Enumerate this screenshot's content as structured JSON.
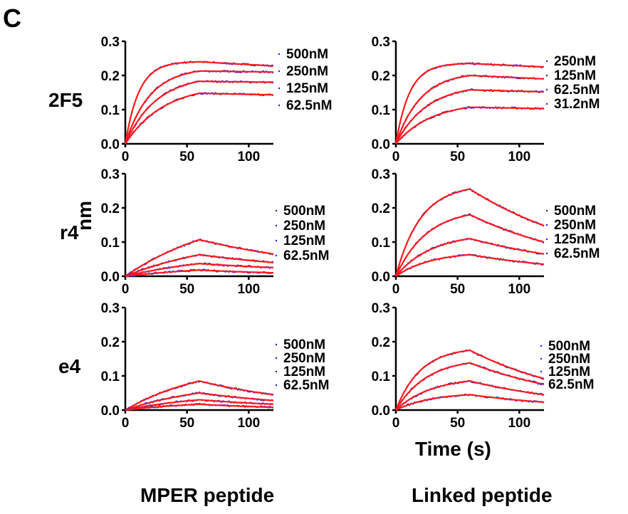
{
  "panel_letter": "C",
  "y_axis_label": "nm",
  "x_axis_label": "Time (s)",
  "columns": [
    "MPER peptide",
    "Linked peptide"
  ],
  "rows": [
    "2F5",
    "r4",
    "e4"
  ],
  "colors": {
    "measured": "#1a1aff",
    "fit": "#ff1a1a",
    "axis": "#000000"
  },
  "chart_data": [
    {
      "type": "line",
      "antibody": "2F5",
      "peptide": "MPER peptide",
      "xlabel": "Time (s)",
      "ylabel": "nm",
      "xlim": [
        0,
        120
      ],
      "ylim": [
        0,
        0.3
      ],
      "xticks": [
        "0",
        "50",
        "100"
      ],
      "yticks": [
        "0.0",
        "0.1",
        "0.2",
        "0.3"
      ],
      "association_end": 60,
      "series": [
        {
          "name": "500nM",
          "peak": 0.24,
          "end": 0.228,
          "rate": 0.09
        },
        {
          "name": "250nM",
          "peak": 0.213,
          "end": 0.21,
          "rate": 0.05
        },
        {
          "name": "125nM",
          "peak": 0.183,
          "end": 0.18,
          "rate": 0.04
        },
        {
          "name": "62.5nM",
          "peak": 0.148,
          "end": 0.143,
          "rate": 0.032
        }
      ]
    },
    {
      "type": "line",
      "antibody": "2F5",
      "peptide": "Linked peptide",
      "xlabel": "Time (s)",
      "ylabel": "nm",
      "xlim": [
        0,
        120
      ],
      "ylim": [
        0,
        0.3
      ],
      "xticks": [
        "0",
        "50",
        "100"
      ],
      "yticks": [
        "0.0",
        "0.1",
        "0.2",
        "0.3"
      ],
      "association_end": 60,
      "series": [
        {
          "name": "250nM",
          "peak": 0.235,
          "end": 0.225,
          "rate": 0.09
        },
        {
          "name": "125nM",
          "peak": 0.2,
          "end": 0.19,
          "rate": 0.05
        },
        {
          "name": "62.5nM",
          "peak": 0.158,
          "end": 0.152,
          "rate": 0.04
        },
        {
          "name": "31.2nM",
          "peak": 0.107,
          "end": 0.103,
          "rate": 0.035
        }
      ]
    },
    {
      "type": "line",
      "antibody": "r4",
      "peptide": "MPER peptide",
      "xlabel": "Time (s)",
      "ylabel": "nm",
      "xlim": [
        0,
        120
      ],
      "ylim": [
        0,
        0.3
      ],
      "xticks": [
        "0",
        "50",
        "100"
      ],
      "yticks": [
        "0.0",
        "0.1",
        "0.2",
        "0.3"
      ],
      "association_end": 60,
      "series": [
        {
          "name": "500nM",
          "peak": 0.107,
          "end": 0.065,
          "rate": 0.012
        },
        {
          "name": "250nM",
          "peak": 0.063,
          "end": 0.04,
          "rate": 0.012
        },
        {
          "name": "125nM",
          "peak": 0.037,
          "end": 0.025,
          "rate": 0.012
        },
        {
          "name": "62.5nM",
          "peak": 0.018,
          "end": 0.01,
          "rate": 0.012
        }
      ]
    },
    {
      "type": "line",
      "antibody": "r4",
      "peptide": "Linked peptide",
      "xlabel": "Time (s)",
      "ylabel": "nm",
      "xlim": [
        0,
        120
      ],
      "ylim": [
        0,
        0.3
      ],
      "xticks": [
        "0",
        "50",
        "100"
      ],
      "yticks": [
        "0.0",
        "0.1",
        "0.2",
        "0.3"
      ],
      "association_end": 60,
      "series": [
        {
          "name": "500nM",
          "peak": 0.255,
          "end": 0.148,
          "rate": 0.05
        },
        {
          "name": "250nM",
          "peak": 0.18,
          "end": 0.1,
          "rate": 0.04
        },
        {
          "name": "125nM",
          "peak": 0.11,
          "end": 0.065,
          "rate": 0.035
        },
        {
          "name": "62.5nM",
          "peak": 0.063,
          "end": 0.035,
          "rate": 0.035
        }
      ]
    },
    {
      "type": "line",
      "antibody": "e4",
      "peptide": "MPER peptide",
      "xlabel": "Time (s)",
      "ylabel": "nm",
      "xlim": [
        0,
        120
      ],
      "ylim": [
        0,
        0.3
      ],
      "xticks": [
        "0",
        "50",
        "100"
      ],
      "yticks": [
        "0.0",
        "0.1",
        "0.2",
        "0.3"
      ],
      "association_end": 60,
      "series": [
        {
          "name": "500nM",
          "peak": 0.085,
          "end": 0.045,
          "rate": 0.015
        },
        {
          "name": "250nM",
          "peak": 0.05,
          "end": 0.028,
          "rate": 0.015
        },
        {
          "name": "125nM",
          "peak": 0.03,
          "end": 0.017,
          "rate": 0.015
        },
        {
          "name": "62.5nM",
          "peak": 0.017,
          "end": 0.008,
          "rate": 0.015
        }
      ]
    },
    {
      "type": "line",
      "antibody": "e4",
      "peptide": "Linked peptide",
      "xlabel": "Time (s)",
      "ylabel": "nm",
      "xlim": [
        0,
        120
      ],
      "ylim": [
        0,
        0.3
      ],
      "xticks": [
        "0",
        "50",
        "100"
      ],
      "yticks": [
        "0.0",
        "0.1",
        "0.2",
        "0.3"
      ],
      "association_end": 60,
      "series": [
        {
          "name": "500nM",
          "peak": 0.175,
          "end": 0.092,
          "rate": 0.05
        },
        {
          "name": "250nM",
          "peak": 0.138,
          "end": 0.075,
          "rate": 0.04
        },
        {
          "name": "125nM",
          "peak": 0.085,
          "end": 0.045,
          "rate": 0.035
        },
        {
          "name": "62.5nM",
          "peak": 0.045,
          "end": 0.023,
          "rate": 0.035
        }
      ]
    }
  ]
}
